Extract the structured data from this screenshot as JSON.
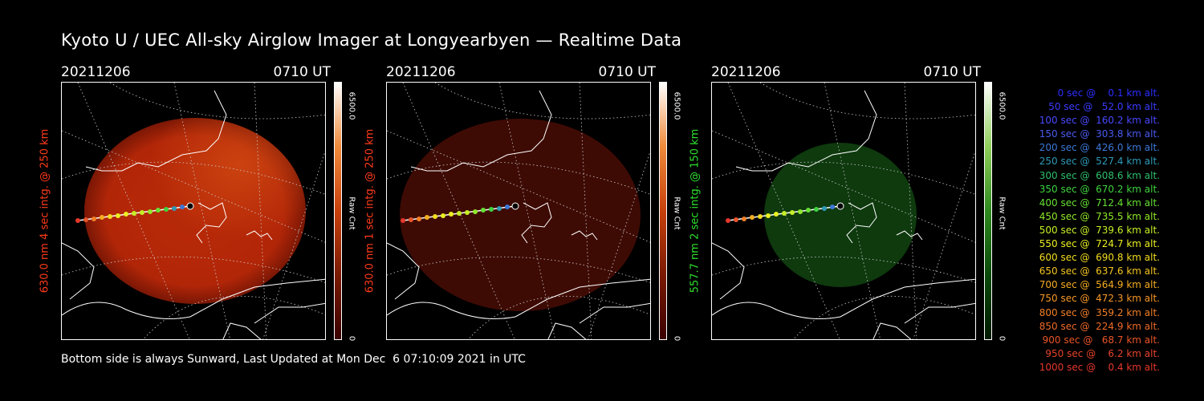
{
  "title": "Kyoto U / UEC All-sky Airglow Imager at Longyearbyen — Realtime Data",
  "footer": "Bottom side is always Sunward, Last Updated at Mon Dec  6 07:10:09 2021 in UTC",
  "panels": [
    {
      "date": "20211206",
      "time": "0710 UT",
      "ylabel": "630.0 nm 4 sec intg. @ 250 km",
      "ylabel_color": "#ff3b1a",
      "cbar_max": "6500.0",
      "cbar_min": "0",
      "cbar_unit": "Raw Cnt",
      "glow_color": "#c7300b",
      "glow_intensity": "high"
    },
    {
      "date": "20211206",
      "time": "0710 UT",
      "ylabel": "630.0 nm 1 sec intg. @ 250 km",
      "ylabel_color": "#ff3b1a",
      "cbar_max": "6500.0",
      "cbar_min": "0",
      "cbar_unit": "Raw Cnt",
      "glow_color": "#5a0f05",
      "glow_intensity": "low"
    },
    {
      "date": "20211206",
      "time": "0710 UT",
      "ylabel": "557.7 nm 2 sec intg. @ 150 km",
      "ylabel_color": "#2ee02e",
      "cbar_max": "6500.0",
      "cbar_min": "0",
      "cbar_unit": "Raw Cnt",
      "glow_color": "#0e3a0e",
      "glow_intensity": "low"
    }
  ],
  "legend": [
    {
      "text": "   0 sec @    0.1 km alt.",
      "color": "#2d2dff"
    },
    {
      "text": "  50 sec @   52.0 km alt.",
      "color": "#3b3bff"
    },
    {
      "text": " 100 sec @  160.2 km alt.",
      "color": "#4848ff"
    },
    {
      "text": " 150 sec @  303.8 km alt.",
      "color": "#4a5af0"
    },
    {
      "text": " 200 sec @  426.0 km alt.",
      "color": "#3c78d8"
    },
    {
      "text": " 250 sec @  527.4 km alt.",
      "color": "#2f9ab8"
    },
    {
      "text": " 300 sec @  608.6 km alt.",
      "color": "#2fbf6a"
    },
    {
      "text": " 350 sec @  670.2 km alt.",
      "color": "#3fd43f"
    },
    {
      "text": " 400 sec @  712.4 km alt.",
      "color": "#66e033"
    },
    {
      "text": " 450 sec @  735.5 km alt.",
      "color": "#8fe82a"
    },
    {
      "text": " 500 sec @  739.6 km alt.",
      "color": "#c5ef26"
    },
    {
      "text": " 550 sec @  724.7 km alt.",
      "color": "#eaf021"
    },
    {
      "text": " 600 sec @  690.8 km alt.",
      "color": "#f3dd1f"
    },
    {
      "text": " 650 sec @  637.6 km alt.",
      "color": "#f5c520"
    },
    {
      "text": " 700 sec @  564.9 km alt.",
      "color": "#f6ad22"
    },
    {
      "text": " 750 sec @  472.3 km alt.",
      "color": "#f79625"
    },
    {
      "text": " 800 sec @  359.2 km alt.",
      "color": "#f37f27"
    },
    {
      "text": " 850 sec @  224.9 km alt.",
      "color": "#ef6a28"
    },
    {
      "text": " 900 sec @   68.7 km alt.",
      "color": "#eb552a"
    },
    {
      "text": " 950 sec @    6.2 km alt.",
      "color": "#e8442a"
    },
    {
      "text": "1000 sec @    0.4 km alt.",
      "color": "#e5372b"
    }
  ],
  "colors": {
    "background": "#000000",
    "text": "#ffffff"
  }
}
